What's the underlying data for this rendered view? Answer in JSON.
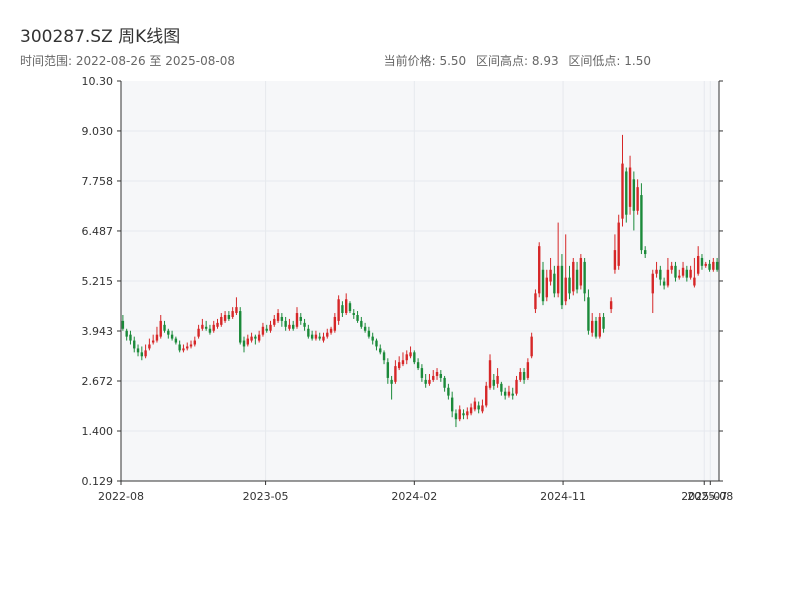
{
  "header": {
    "title": "300287.SZ 周K线图",
    "subtitle": "时间范围: 2022-08-26 至 2025-08-08",
    "current_price": "当前价格: 5.50",
    "range_high": "区间高点: 8.93",
    "range_low": "区间低点: 1.50"
  },
  "chart_data": {
    "type": "candlestick",
    "title": "300287.SZ 周K线图",
    "xlabel": "",
    "ylabel": "",
    "ylim": [
      0.129,
      10.3
    ],
    "y_ticks": [
      "0.129",
      "1.400",
      "2.672",
      "3.943",
      "5.215",
      "6.487",
      "7.758",
      "9.030",
      "10.30"
    ],
    "x_ticks": [
      "2022-08",
      "2023-05",
      "2024-02",
      "2024-11",
      "2025-07",
      "2025-08"
    ],
    "x_tick_weeks": [
      0,
      38.2,
      77.5,
      116.8,
      154.1,
      155.7
    ],
    "grid": true,
    "colors": {
      "up": "#d62728",
      "down": "#1b8a3a",
      "grid": "#e6e9ee",
      "plot_bg": "#f6f7f9",
      "axis": "#333333"
    },
    "candles": [
      [
        4.2,
        4.0,
        4.35,
        3.95
      ],
      [
        3.95,
        3.8,
        4.0,
        3.7
      ],
      [
        3.85,
        3.7,
        3.95,
        3.6
      ],
      [
        3.7,
        3.5,
        3.8,
        3.4
      ],
      [
        3.5,
        3.4,
        3.6,
        3.3
      ],
      [
        3.4,
        3.3,
        3.55,
        3.2
      ],
      [
        3.3,
        3.45,
        3.6,
        3.25
      ],
      [
        3.5,
        3.6,
        3.75,
        3.45
      ],
      [
        3.65,
        3.7,
        3.85,
        3.6
      ],
      [
        3.7,
        3.85,
        4.05,
        3.65
      ],
      [
        3.8,
        4.2,
        4.35,
        3.75
      ],
      [
        4.1,
        3.95,
        4.2,
        3.9
      ],
      [
        3.95,
        3.85,
        4.0,
        3.75
      ],
      [
        3.85,
        3.75,
        3.95,
        3.7
      ],
      [
        3.75,
        3.65,
        3.8,
        3.6
      ],
      [
        3.6,
        3.45,
        3.7,
        3.4
      ],
      [
        3.45,
        3.5,
        3.6,
        3.4
      ],
      [
        3.5,
        3.55,
        3.65,
        3.45
      ],
      [
        3.55,
        3.6,
        3.7,
        3.5
      ],
      [
        3.6,
        3.7,
        3.8,
        3.55
      ],
      [
        3.8,
        4.0,
        4.1,
        3.75
      ],
      [
        4.0,
        4.1,
        4.25,
        3.95
      ],
      [
        4.05,
        4.0,
        4.2,
        3.95
      ],
      [
        4.0,
        3.9,
        4.1,
        3.85
      ],
      [
        3.95,
        4.1,
        4.2,
        3.9
      ],
      [
        4.05,
        4.15,
        4.25,
        4.0
      ],
      [
        4.1,
        4.3,
        4.4,
        4.05
      ],
      [
        4.2,
        4.35,
        4.45,
        4.15
      ],
      [
        4.35,
        4.25,
        4.45,
        4.2
      ],
      [
        4.3,
        4.45,
        4.55,
        4.25
      ],
      [
        4.4,
        4.55,
        4.8,
        4.35
      ],
      [
        4.45,
        3.65,
        4.55,
        3.6
      ],
      [
        3.7,
        3.55,
        3.8,
        3.4
      ],
      [
        3.6,
        3.75,
        3.85,
        3.55
      ],
      [
        3.7,
        3.8,
        3.9,
        3.65
      ],
      [
        3.8,
        3.75,
        3.85,
        3.6
      ],
      [
        3.7,
        3.85,
        3.95,
        3.65
      ],
      [
        3.85,
        4.05,
        4.15,
        3.8
      ],
      [
        4.0,
        3.95,
        4.1,
        3.9
      ],
      [
        3.95,
        4.1,
        4.2,
        3.9
      ],
      [
        4.1,
        4.25,
        4.35,
        4.05
      ],
      [
        4.2,
        4.4,
        4.5,
        4.15
      ],
      [
        4.3,
        4.2,
        4.4,
        4.05
      ],
      [
        4.2,
        4.05,
        4.3,
        3.95
      ],
      [
        4.0,
        4.1,
        4.25,
        3.95
      ],
      [
        4.1,
        4.0,
        4.2,
        3.95
      ],
      [
        4.05,
        4.4,
        4.55,
        4.0
      ],
      [
        4.3,
        4.2,
        4.4,
        4.1
      ],
      [
        4.15,
        4.05,
        4.25,
        3.95
      ],
      [
        4.0,
        3.8,
        4.1,
        3.75
      ],
      [
        3.85,
        3.75,
        3.95,
        3.7
      ],
      [
        3.75,
        3.85,
        3.95,
        3.7
      ],
      [
        3.8,
        3.75,
        3.9,
        3.7
      ],
      [
        3.7,
        3.8,
        3.9,
        3.65
      ],
      [
        3.8,
        3.9,
        4.0,
        3.75
      ],
      [
        3.9,
        4.0,
        4.05,
        3.85
      ],
      [
        3.95,
        4.3,
        4.4,
        3.9
      ],
      [
        4.2,
        4.75,
        4.85,
        4.1
      ],
      [
        4.6,
        4.4,
        4.7,
        4.3
      ],
      [
        4.4,
        4.75,
        4.9,
        4.35
      ],
      [
        4.65,
        4.45,
        4.7,
        4.4
      ],
      [
        4.4,
        4.35,
        4.5,
        4.25
      ],
      [
        4.35,
        4.2,
        4.45,
        4.15
      ],
      [
        4.2,
        4.05,
        4.3,
        4.0
      ],
      [
        4.05,
        3.95,
        4.15,
        3.9
      ],
      [
        3.95,
        3.8,
        4.05,
        3.75
      ],
      [
        3.8,
        3.7,
        3.9,
        3.6
      ],
      [
        3.7,
        3.55,
        3.75,
        3.45
      ],
      [
        3.5,
        3.4,
        3.6,
        3.35
      ],
      [
        3.4,
        3.2,
        3.45,
        3.1
      ],
      [
        3.15,
        2.75,
        3.25,
        2.6
      ],
      [
        2.7,
        2.6,
        2.8,
        2.2
      ],
      [
        2.65,
        3.05,
        3.2,
        2.6
      ],
      [
        3.0,
        3.15,
        3.3,
        2.95
      ],
      [
        3.1,
        3.2,
        3.4,
        3.05
      ],
      [
        3.2,
        3.35,
        3.45,
        3.1
      ],
      [
        3.3,
        3.4,
        3.55,
        3.25
      ],
      [
        3.4,
        3.15,
        3.45,
        3.1
      ],
      [
        3.15,
        3.0,
        3.25,
        2.95
      ],
      [
        3.0,
        2.75,
        3.1,
        2.65
      ],
      [
        2.7,
        2.6,
        2.85,
        2.5
      ],
      [
        2.6,
        2.7,
        2.85,
        2.55
      ],
      [
        2.7,
        2.8,
        2.95,
        2.65
      ],
      [
        2.8,
        2.9,
        3.0,
        2.7
      ],
      [
        2.85,
        2.75,
        2.95,
        2.65
      ],
      [
        2.75,
        2.5,
        2.8,
        2.4
      ],
      [
        2.5,
        2.3,
        2.6,
        2.2
      ],
      [
        2.25,
        1.9,
        2.4,
        1.75
      ],
      [
        1.85,
        1.7,
        1.95,
        1.5
      ],
      [
        1.7,
        1.95,
        2.05,
        1.65
      ],
      [
        1.85,
        1.8,
        1.95,
        1.7
      ],
      [
        1.8,
        1.9,
        2.0,
        1.7
      ],
      [
        1.85,
        2.0,
        2.1,
        1.8
      ],
      [
        1.95,
        2.15,
        2.25,
        1.9
      ],
      [
        2.05,
        1.95,
        2.15,
        1.85
      ],
      [
        1.9,
        2.05,
        2.2,
        1.85
      ],
      [
        2.05,
        2.55,
        2.65,
        2.0
      ],
      [
        2.5,
        3.2,
        3.35,
        2.45
      ],
      [
        2.7,
        2.55,
        2.85,
        2.45
      ],
      [
        2.6,
        2.8,
        3.0,
        2.5
      ],
      [
        2.6,
        2.4,
        2.65,
        2.3
      ],
      [
        2.4,
        2.3,
        2.5,
        2.2
      ],
      [
        2.3,
        2.4,
        2.55,
        2.25
      ],
      [
        2.35,
        2.3,
        2.5,
        2.2
      ],
      [
        2.35,
        2.7,
        2.8,
        2.3
      ],
      [
        2.7,
        2.9,
        3.0,
        2.65
      ],
      [
        2.9,
        2.7,
        3.0,
        2.6
      ],
      [
        2.75,
        3.15,
        3.25,
        2.7
      ],
      [
        3.3,
        3.8,
        3.9,
        3.25
      ],
      [
        4.5,
        4.9,
        5.0,
        4.4
      ],
      [
        4.9,
        6.1,
        6.2,
        4.8
      ],
      [
        5.5,
        4.7,
        5.7,
        4.6
      ],
      [
        4.8,
        5.3,
        5.5,
        4.7
      ],
      [
        5.2,
        5.5,
        5.8,
        5.1
      ],
      [
        5.4,
        4.9,
        5.6,
        4.8
      ],
      [
        4.9,
        5.6,
        6.7,
        4.8
      ],
      [
        5.6,
        4.6,
        5.9,
        4.5
      ],
      [
        4.7,
        5.3,
        6.4,
        4.6
      ],
      [
        5.3,
        4.9,
        5.6,
        4.75
      ],
      [
        4.95,
        5.7,
        5.8,
        4.85
      ],
      [
        5.5,
        5.0,
        5.7,
        4.9
      ],
      [
        5.1,
        5.8,
        5.9,
        5.0
      ],
      [
        5.7,
        4.9,
        5.8,
        4.7
      ],
      [
        4.8,
        3.95,
        5.0,
        3.85
      ],
      [
        3.9,
        4.2,
        4.4,
        3.8
      ],
      [
        4.2,
        3.8,
        4.3,
        3.75
      ],
      [
        3.8,
        4.3,
        4.4,
        3.75
      ],
      [
        4.3,
        4.0,
        4.4,
        3.9
      ],
      [
        null,
        null,
        null,
        null
      ],
      [
        4.5,
        4.7,
        4.8,
        4.4
      ],
      [
        5.5,
        6.0,
        6.4,
        5.4
      ],
      [
        5.6,
        6.7,
        6.9,
        5.5
      ],
      [
        6.8,
        8.2,
        8.93,
        6.6
      ],
      [
        8.0,
        6.9,
        8.1,
        6.7
      ],
      [
        7.1,
        8.1,
        8.4,
        6.9
      ],
      [
        7.8,
        7.0,
        8.0,
        6.5
      ],
      [
        7.0,
        7.6,
        7.8,
        6.9
      ],
      [
        7.4,
        6.0,
        7.7,
        5.9
      ],
      [
        6.0,
        5.9,
        6.1,
        5.8
      ],
      [
        null,
        null,
        null,
        null
      ],
      [
        4.9,
        5.4,
        5.5,
        4.4
      ],
      [
        5.4,
        5.5,
        5.7,
        5.3
      ],
      [
        5.5,
        5.25,
        5.6,
        5.1
      ],
      [
        5.2,
        5.1,
        5.3,
        5.0
      ],
      [
        5.1,
        5.5,
        5.8,
        5.05
      ],
      [
        5.5,
        5.6,
        5.7,
        5.4
      ],
      [
        5.6,
        5.3,
        5.7,
        5.2
      ],
      [
        5.3,
        5.35,
        5.5,
        5.25
      ],
      [
        5.35,
        5.55,
        5.7,
        5.3
      ],
      [
        5.5,
        5.3,
        5.6,
        5.2
      ],
      [
        5.3,
        5.5,
        5.6,
        5.25
      ],
      [
        5.1,
        5.3,
        5.8,
        5.05
      ],
      [
        5.4,
        5.85,
        6.1,
        5.35
      ],
      [
        5.8,
        5.6,
        5.9,
        5.5
      ],
      [
        5.6,
        5.65,
        5.7,
        5.55
      ],
      [
        5.65,
        5.5,
        5.75,
        5.45
      ],
      [
        5.5,
        5.7,
        5.8,
        5.45
      ],
      [
        5.7,
        5.5,
        5.8,
        5.45
      ]
    ]
  }
}
